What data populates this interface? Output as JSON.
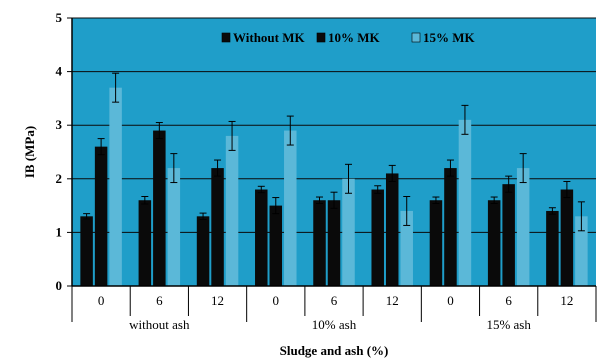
{
  "chart_data": {
    "type": "bar",
    "ylabel": "IB (MPa)",
    "xlabel": "Sludge and ash (%)",
    "ylim": [
      0,
      5
    ],
    "yticks": [
      0,
      1,
      2,
      3,
      4,
      5
    ],
    "grid": true,
    "legend_position": "top",
    "categories": [
      "0",
      "6",
      "12",
      "0",
      "6",
      "12",
      "0",
      "6",
      "12"
    ],
    "groups": [
      {
        "label": "without  ash",
        "span": [
          0,
          2
        ]
      },
      {
        "label": "10% ash",
        "span": [
          3,
          5
        ]
      },
      {
        "label": "15% ash",
        "span": [
          6,
          8
        ]
      }
    ],
    "series": [
      {
        "name": "Without MK",
        "color": "#0a0a0a",
        "values": [
          1.3,
          1.6,
          1.3,
          1.8,
          1.6,
          1.8,
          1.6,
          1.6,
          1.4
        ],
        "errors": [
          0.05,
          0.07,
          0.06,
          0.06,
          0.06,
          0.07,
          0.06,
          0.06,
          0.06
        ]
      },
      {
        "name": "10% MK",
        "color": "#0a0a0a",
        "values": [
          2.6,
          2.9,
          2.2,
          1.5,
          1.6,
          2.1,
          2.2,
          1.9,
          1.8
        ],
        "errors": [
          0.15,
          0.15,
          0.15,
          0.15,
          0.15,
          0.15,
          0.15,
          0.15,
          0.15
        ]
      },
      {
        "name": "15% MK",
        "color": "#5bb8d8",
        "values": [
          3.7,
          2.2,
          2.8,
          2.9,
          2.0,
          1.4,
          3.1,
          2.2,
          1.3
        ],
        "errors": [
          0.27,
          0.27,
          0.27,
          0.27,
          0.27,
          0.27,
          0.27,
          0.27,
          0.27
        ]
      }
    ],
    "colors": {
      "background": "#1f9ec9",
      "grid": "#0a0a0a"
    }
  }
}
